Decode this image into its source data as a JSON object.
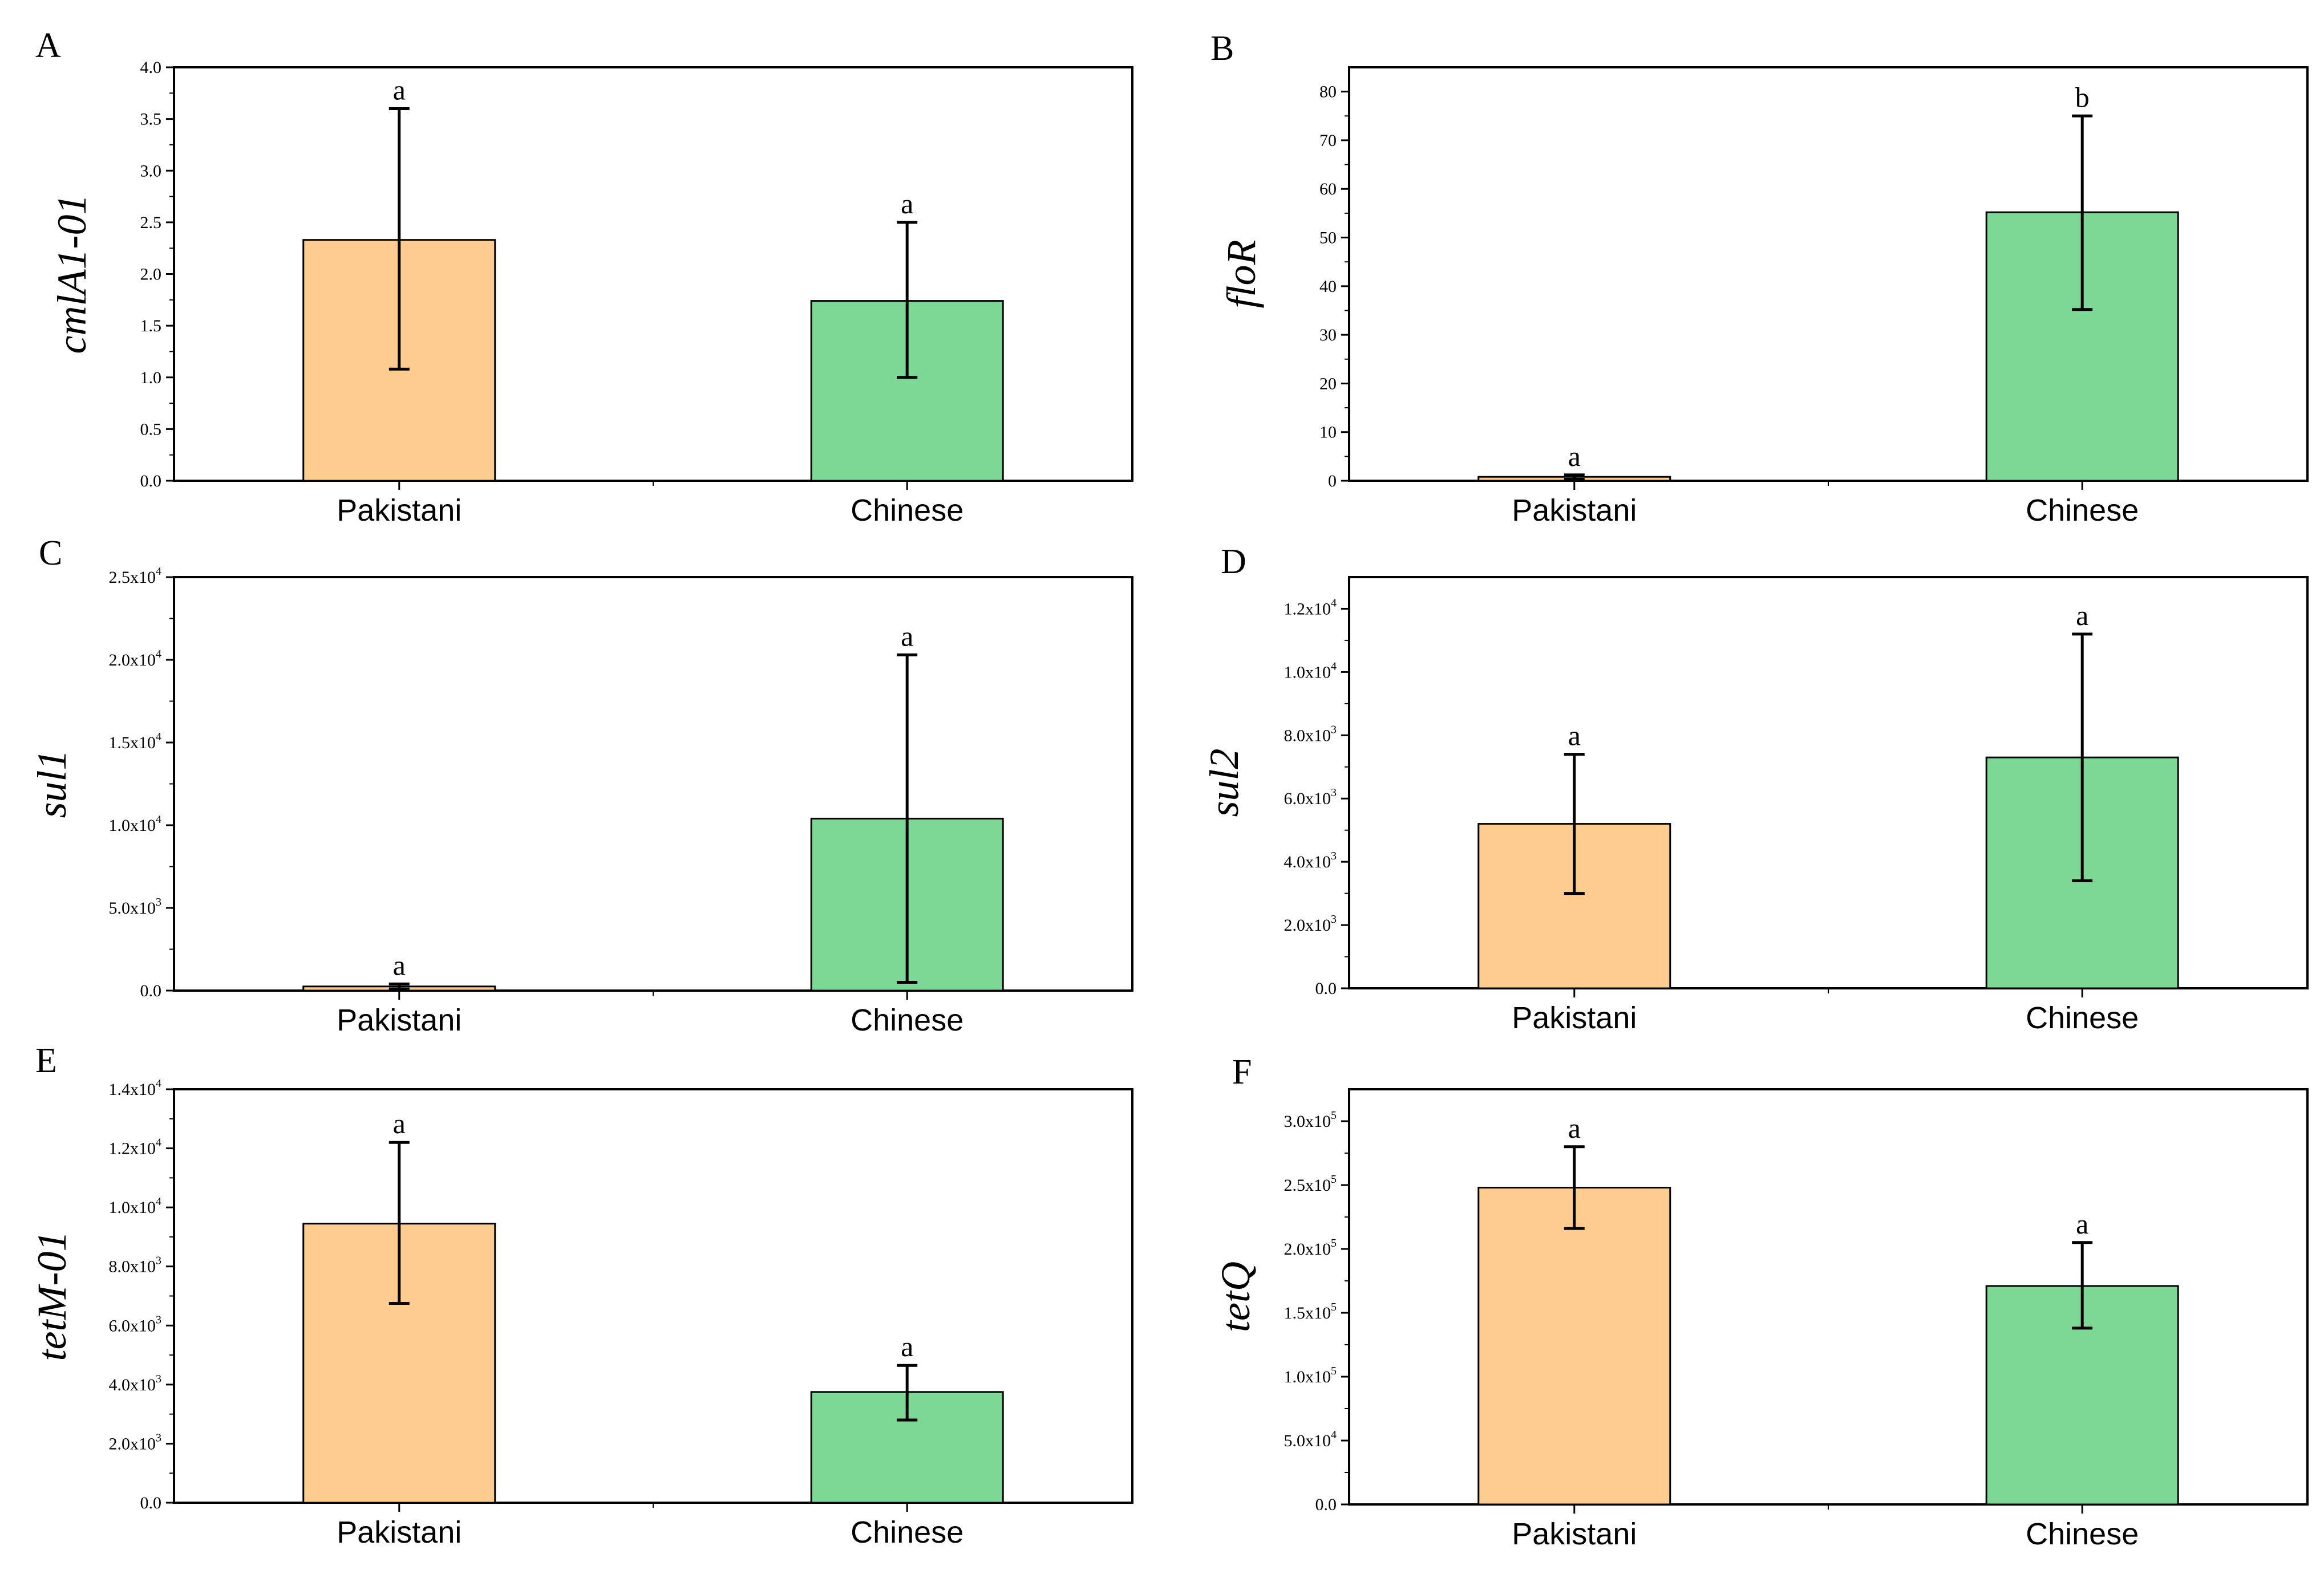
{
  "colors": {
    "pakistani": "#FFCC8F",
    "chinese": "#7DD795",
    "axis": "#000000",
    "bar_stroke": "#000000"
  },
  "chart_data": [
    {
      "panel": "A",
      "type": "bar",
      "ylabel": "cmlA1-01",
      "categories": [
        "Pakistani",
        "Chinese"
      ],
      "values": [
        2.33,
        1.74
      ],
      "err_low": [
        1.08,
        1.0
      ],
      "err_high": [
        3.6,
        2.5
      ],
      "sig": [
        "a",
        "a"
      ],
      "ylim": [
        0,
        4.0
      ],
      "yticks": [
        "0.0",
        "0.5",
        "1.0",
        "1.5",
        "2.0",
        "2.5",
        "3.0",
        "3.5",
        "4.0"
      ]
    },
    {
      "panel": "B",
      "type": "bar",
      "ylabel": "floR",
      "categories": [
        "Pakistani",
        "Chinese"
      ],
      "values": [
        0.8,
        55.2
      ],
      "err_low": [
        0.3,
        35.2
      ],
      "err_high": [
        1.2,
        75.0
      ],
      "sig": [
        "a",
        "b"
      ],
      "ylim": [
        0,
        85
      ],
      "yticks": [
        "0",
        "10",
        "20",
        "30",
        "40",
        "50",
        "60",
        "70",
        "80"
      ]
    },
    {
      "panel": "C",
      "type": "bar",
      "ylabel": "sul1",
      "categories": [
        "Pakistani",
        "Chinese"
      ],
      "values": [
        250,
        10400
      ],
      "err_low": [
        100,
        500
      ],
      "err_high": [
        400,
        20300
      ],
      "sig": [
        "a",
        "a"
      ],
      "ylim": [
        0,
        25000
      ],
      "yticks": [
        "0.0",
        "5.0x10^3",
        "1.0x10^4",
        "1.5x10^4",
        "2.0x10^4",
        "2.5x10^4"
      ]
    },
    {
      "panel": "D",
      "type": "bar",
      "ylabel": "sul2",
      "categories": [
        "Pakistani",
        "Chinese"
      ],
      "values": [
        5200,
        7300
      ],
      "err_low": [
        3000,
        3400
      ],
      "err_high": [
        7400,
        11200
      ],
      "sig": [
        "a",
        "a"
      ],
      "ylim": [
        0,
        13000
      ],
      "yticks": [
        "0.0",
        "2.0x10^3",
        "4.0x10^3",
        "6.0x10^3",
        "8.0x10^3",
        "1.0x10^4",
        "1.2x10^4"
      ]
    },
    {
      "panel": "E",
      "type": "bar",
      "ylabel": "tetM-01",
      "categories": [
        "Pakistani",
        "Chinese"
      ],
      "values": [
        9450,
        3750
      ],
      "err_low": [
        6750,
        2800
      ],
      "err_high": [
        12200,
        4650
      ],
      "sig": [
        "a",
        "a"
      ],
      "ylim": [
        0,
        14000
      ],
      "yticks": [
        "0.0",
        "2.0x10^3",
        "4.0x10^3",
        "6.0x10^3",
        "8.0x10^3",
        "1.0x10^4",
        "1.2x10^4",
        "1.4x10^4"
      ]
    },
    {
      "panel": "F",
      "type": "bar",
      "ylabel": "tetQ",
      "categories": [
        "Pakistani",
        "Chinese"
      ],
      "values": [
        248000,
        171000
      ],
      "err_low": [
        216000,
        138000
      ],
      "err_high": [
        280000,
        205000
      ],
      "sig": [
        "a",
        "a"
      ],
      "ylim": [
        0,
        325000
      ],
      "yticks": [
        "0.0",
        "5.0x10^4",
        "1.0x10^5",
        "1.5x10^5",
        "2.0x10^5",
        "2.5x10^5",
        "3.0x10^5"
      ]
    }
  ]
}
